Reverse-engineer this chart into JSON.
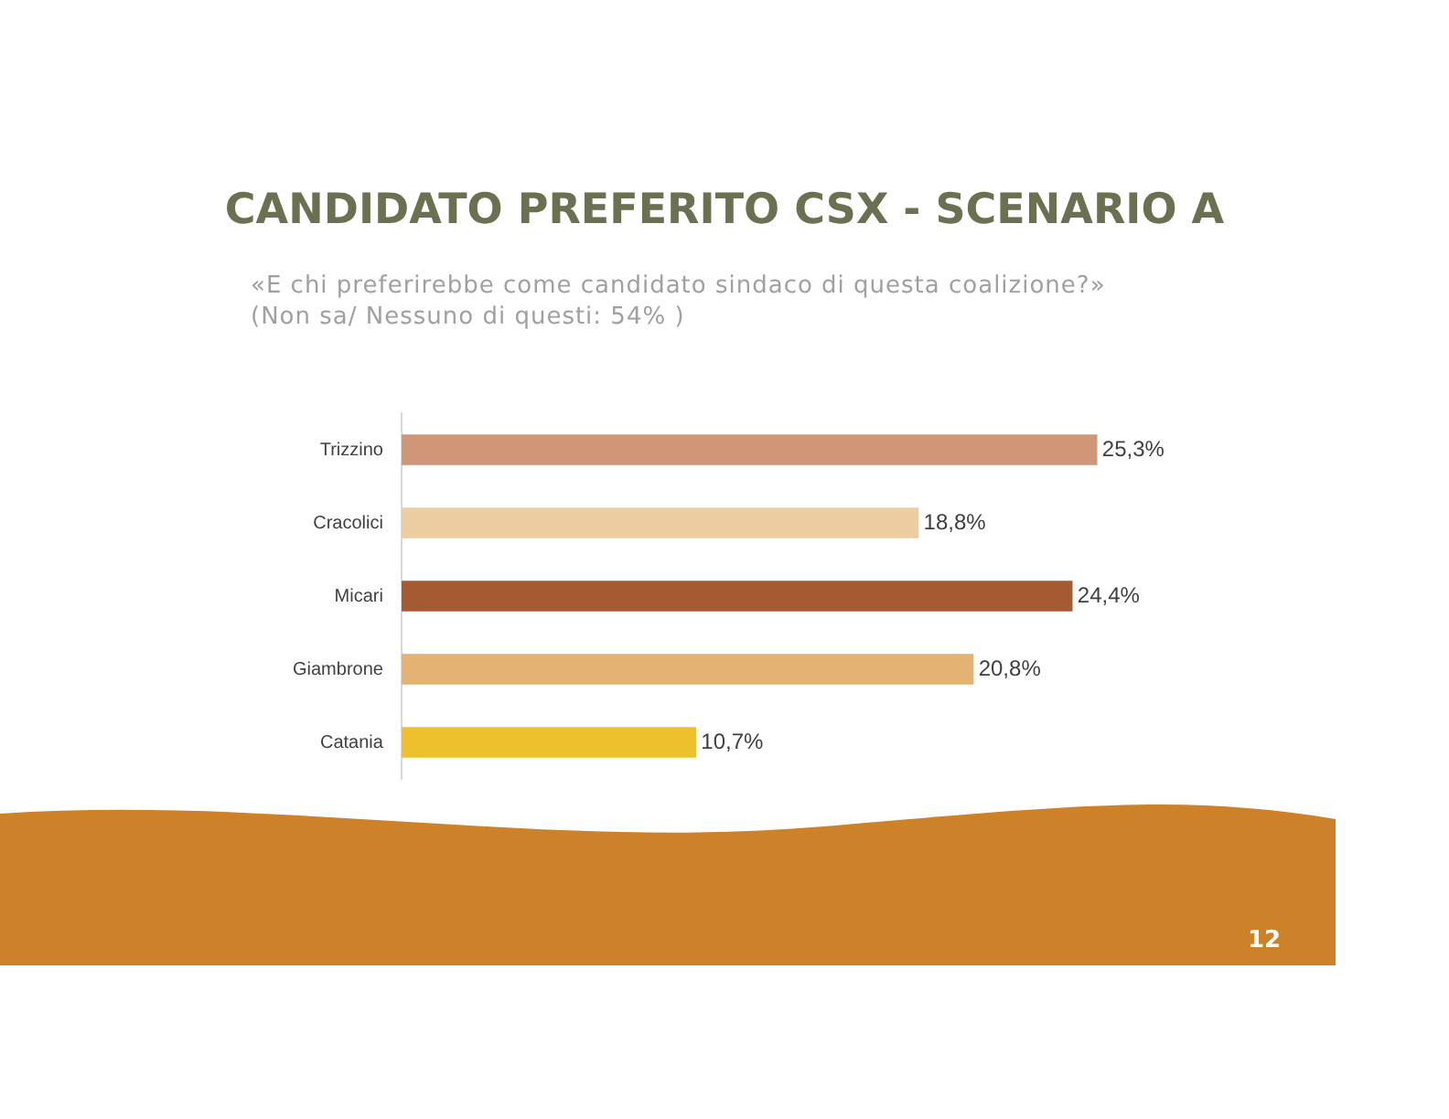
{
  "chart_data": {
    "type": "bar",
    "orientation": "horizontal",
    "title": "CANDIDATO PREFERITO CSX - SCENARIO A",
    "subtitle": "«E chi preferirebbe come candidato sindaco di questa coalizione?»\n(Non sa/ Nessuno di questi: 54% )",
    "categories": [
      "Trizzino",
      "Cracolici",
      "Micari",
      "Giambrone",
      "Catania"
    ],
    "values": [
      25.3,
      18.8,
      24.4,
      20.8,
      10.7
    ],
    "colors": [
      "#cf9677",
      "#ebcd9f",
      "#a65a31",
      "#e4b273",
      "#eec02e"
    ],
    "value_labels": [
      "25,3%",
      "18,8%",
      "24,4%",
      "20,8%",
      "10,7%"
    ],
    "annotations": [
      "12"
    ],
    "legend": false
  }
}
